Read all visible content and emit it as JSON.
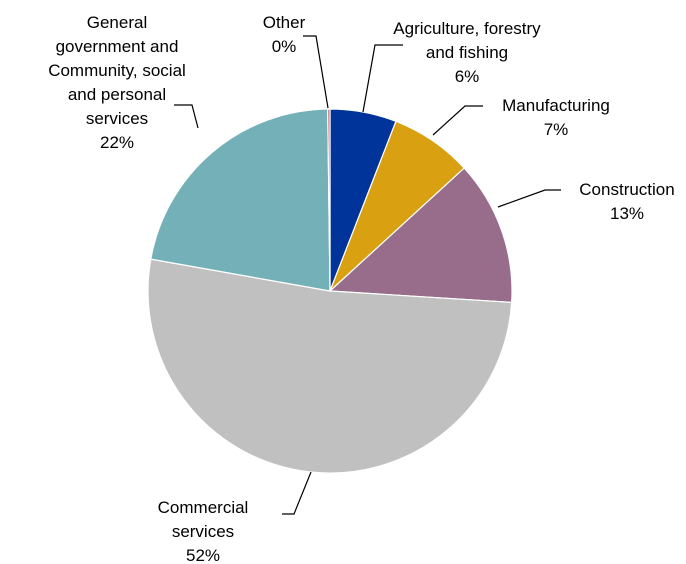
{
  "chart_data": {
    "type": "pie",
    "title": "",
    "start_angle_deg": 0,
    "direction": "clockwise",
    "slices": [
      {
        "key": "agri",
        "label_lines": [
          "Agriculture, forestry",
          "and fishing"
        ],
        "percent_label": "6%",
        "value": 5.9,
        "color": "#00349a"
      },
      {
        "key": "manu",
        "label_lines": [
          "Manufacturing"
        ],
        "percent_label": "7%",
        "value": 7.3,
        "color": "#d9a012"
      },
      {
        "key": "cons",
        "label_lines": [
          "Construction"
        ],
        "percent_label": "13%",
        "value": 12.8,
        "color": "#986d8b"
      },
      {
        "key": "comm",
        "label_lines": [
          "Commercial",
          "services"
        ],
        "percent_label": "52%",
        "value": 51.8,
        "color": "#c0c0c0"
      },
      {
        "key": "gov",
        "label_lines": [
          "General",
          "government and",
          "Community, social",
          "and personal",
          "services"
        ],
        "percent_label": "22%",
        "value": 22.0,
        "color": "#73b0b8"
      },
      {
        "key": "other",
        "label_lines": [
          "Other"
        ],
        "percent_label": "0%",
        "value": 0.2,
        "color": "#c0504d"
      }
    ]
  }
}
